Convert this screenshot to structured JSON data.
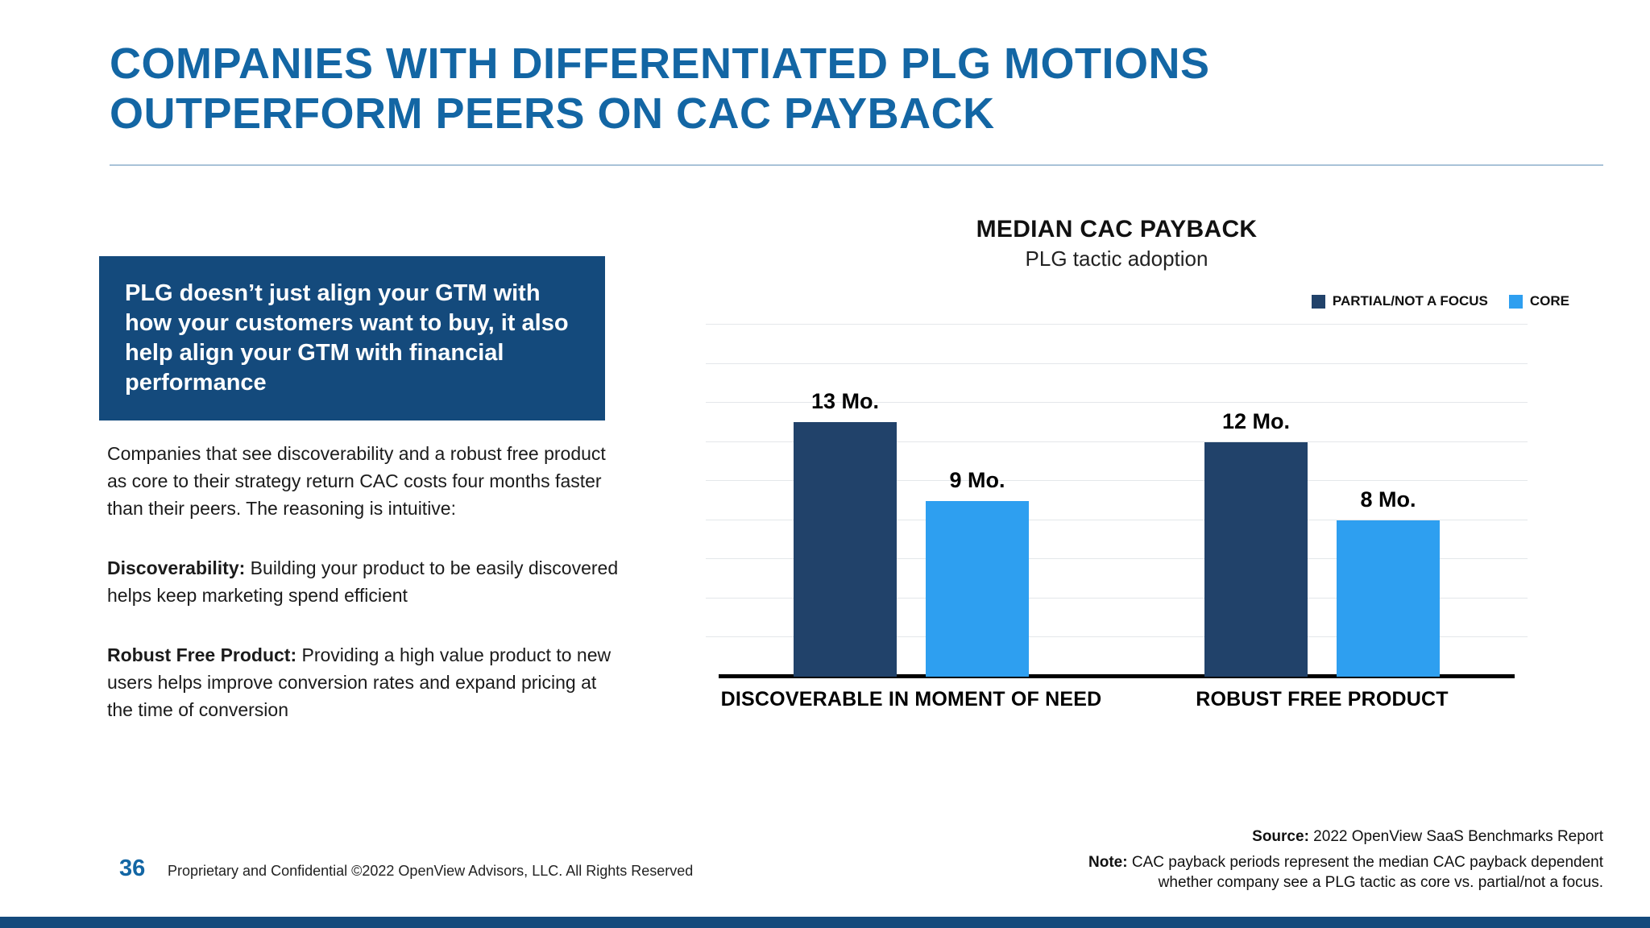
{
  "slide": {
    "title_line1": "COMPANIES WITH DIFFERENTIATED PLG MOTIONS",
    "title_line2": "OUTPERFORM PEERS ON CAC PAYBACK",
    "callout": "PLG doesn’t just align your GTM with how your customers want to buy, it also help align your GTM with financial performance",
    "intro": "Companies that see discoverability and a robust free product as core to their strategy return CAC costs four months faster than their peers. The reasoning is intuitive:",
    "point1_label": "Discoverability:",
    "point1_text": " Building your product to be easily discovered helps keep marketing spend efficient",
    "point2_label": "Robust Free Product:",
    "point2_text": " Providing a high value product to new users helps improve conversion rates and expand pricing at the time of conversion"
  },
  "chart_data": {
    "type": "bar",
    "title": "MEDIAN CAC PAYBACK",
    "subtitle": "PLG tactic adoption",
    "categories": [
      "DISCOVERABLE IN MOMENT OF NEED",
      "ROBUST FREE PRODUCT"
    ],
    "series": [
      {
        "name": "PARTIAL/NOT A FOCUS",
        "color": "#21426a",
        "values": [
          13,
          12
        ],
        "labels": [
          "13 Mo.",
          "12 Mo."
        ]
      },
      {
        "name": "CORE",
        "color": "#2e9ff0",
        "values": [
          9,
          8
        ],
        "labels": [
          "9 Mo.",
          "8 Mo."
        ]
      }
    ],
    "unit": "Mo.",
    "ylim": [
      0,
      18
    ],
    "grid_step": 2,
    "grid": true,
    "legend_position": "top-right"
  },
  "footer": {
    "page_number": "36",
    "proprietary": "Proprietary and Confidential ©2022 OpenView Advisors, LLC. All Rights Reserved",
    "source_label": "Source:",
    "source_text": " 2022 OpenView SaaS Benchmarks Report",
    "note_label": "Note:",
    "note_text": " CAC payback periods represent the median CAC payback dependent whether company see a PLG tactic as core vs. partial/not a focus."
  },
  "colors": {
    "title_blue": "#1366a4",
    "callout_navy": "#144a7c",
    "bar_dark_navy": "#21426a",
    "bar_light_blue": "#2e9ff0",
    "bottom_bar_navy": "#144a7c"
  }
}
